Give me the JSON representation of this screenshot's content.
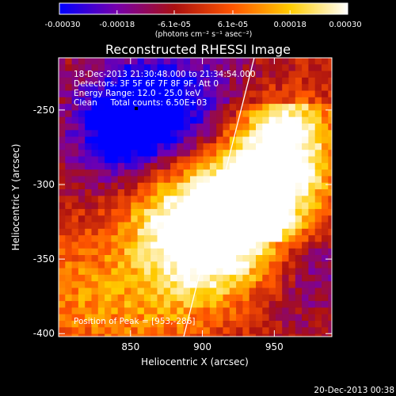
{
  "chart_data": {
    "type": "heatmap",
    "title": "Reconstructed RHESSI Image",
    "xlabel": "Heliocentric X (arcsec)",
    "ylabel": "Heliocentric Y (arcsec)",
    "xlim": [
      800,
      990
    ],
    "ylim": [
      -402,
      -215
    ],
    "x_ticks": [
      850,
      900,
      950
    ],
    "y_ticks": [
      -250,
      -300,
      -350,
      -400
    ],
    "colorbar": {
      "ticks": [
        "-0.00030",
        "-0.00018",
        "-6.1e-05",
        "6.1e-05",
        "0.00018",
        "0.00030"
      ],
      "tick_values": [
        -0.0003,
        -0.00018,
        -6.1e-05,
        6.1e-05,
        0.00018,
        0.0003
      ],
      "range": [
        -0.0003,
        0.0003
      ],
      "unit_label": "(photons cm⁻² s⁻¹ asec⁻²)",
      "colormap": [
        "#0000ff",
        "#7700aa",
        "#aa1010",
        "#ff5500",
        "#ffcc00",
        "#ffffff"
      ]
    },
    "info_lines": [
      "18-Dec-2013 21:30:48.000 to 21:34:54.000",
      "Detectors: 3F 5F 6F 7F 8F 9F, Att 0",
      "Energy Range: 12.0 - 25.0 keV",
      "Clean     Total counts: 6.50E+03"
    ],
    "peak_label": "Position of Peak = [953,-286]",
    "peak_position": [
      953,
      -286
    ],
    "limb_line": [
      [
        887,
        -402
      ],
      [
        936,
        -215
      ]
    ],
    "emission_peaks": [
      {
        "x": 955,
        "y": -285,
        "value": 0.0003
      },
      {
        "x": 925,
        "y": -330,
        "value": 0.00026
      },
      {
        "x": 900,
        "y": -335,
        "value": 0.00022
      },
      {
        "x": 875,
        "y": -320,
        "value": 0.00018
      },
      {
        "x": 810,
        "y": -375,
        "value": 0.00015
      },
      {
        "x": 870,
        "y": -385,
        "value": 0.00012
      },
      {
        "x": 845,
        "y": -265,
        "value": -0.0003
      },
      {
        "x": 870,
        "y": -245,
        "value": -0.00022
      },
      {
        "x": 975,
        "y": -355,
        "value": -0.00012
      },
      {
        "x": 910,
        "y": -245,
        "value": -0.0001
      }
    ],
    "black_marker": {
      "x": 854,
      "y": -249
    }
  },
  "footer_date": "20-Dec-2013 00:38"
}
